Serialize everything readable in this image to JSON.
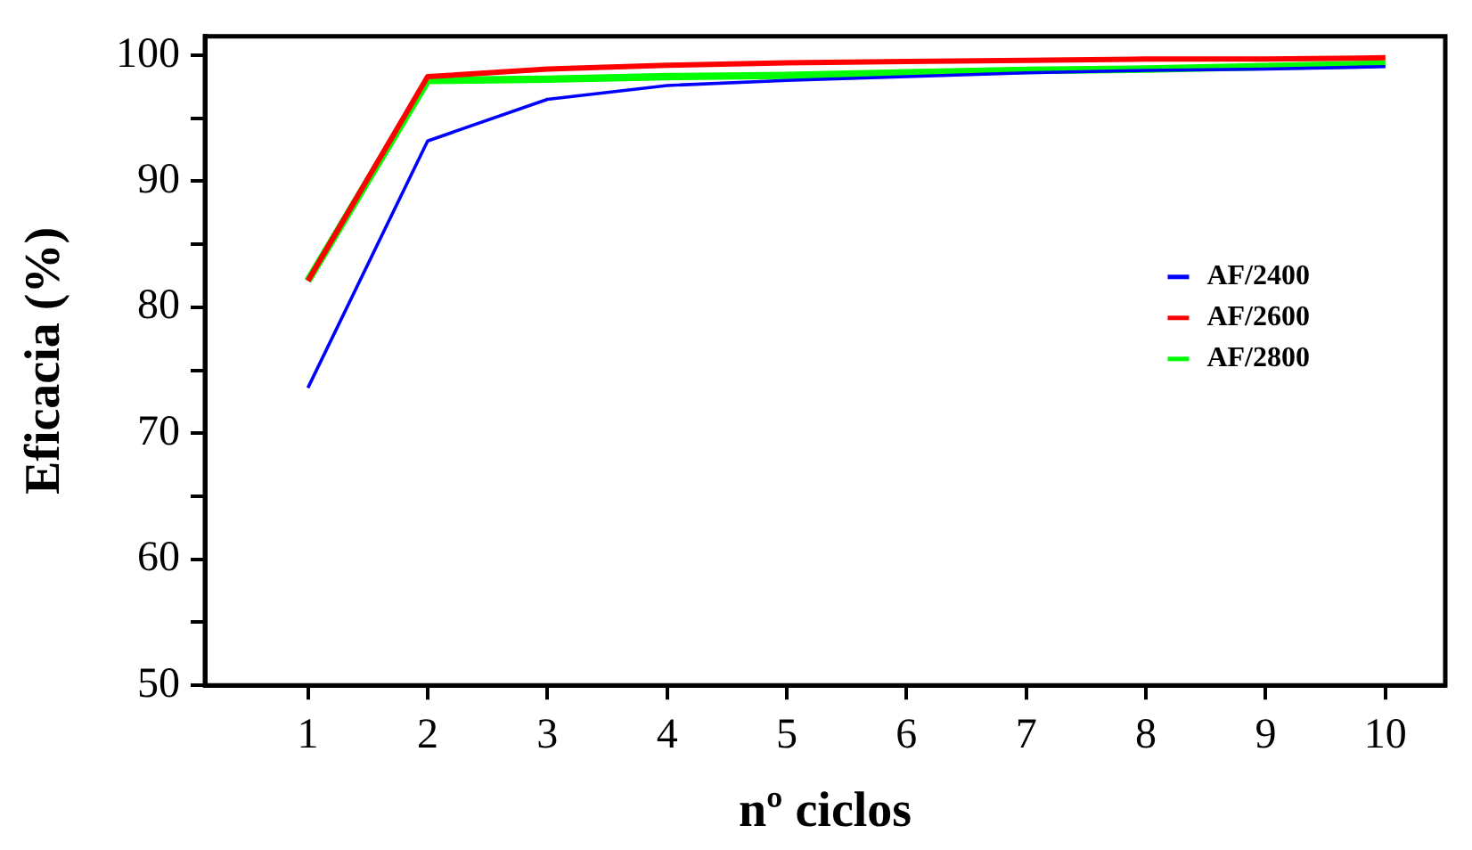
{
  "chart_data": {
    "type": "line",
    "xlabel": "nº ciclos",
    "ylabel": "Eficacia (%)",
    "x": [
      1,
      2,
      3,
      4,
      5,
      6,
      7,
      8,
      9,
      10
    ],
    "xlim": [
      0.14,
      10.5
    ],
    "xticks": [
      1,
      2,
      3,
      4,
      5,
      6,
      7,
      8,
      9,
      10
    ],
    "ylim": [
      50,
      101.5
    ],
    "yticks": [
      50,
      {
        "value": 55,
        "label": null
      },
      60,
      {
        "value": 65,
        "label": null
      },
      70,
      {
        "value": 75,
        "label": null
      },
      80,
      {
        "value": 85,
        "label": null
      },
      90,
      {
        "value": 95,
        "label": null
      },
      100
    ],
    "grid": false,
    "legend": "right",
    "marker": "none",
    "line_style": "solid",
    "series": [
      {
        "name": "AF/2400",
        "color": "#0000ff",
        "values": [
          73.6,
          93.2,
          96.5,
          97.6,
          98.0,
          98.3,
          98.6,
          98.8,
          98.9,
          99.1
        ]
      },
      {
        "name": "AF/2600",
        "color": "#ff0000",
        "values": [
          82.1,
          98.3,
          98.9,
          99.2,
          99.4,
          99.5,
          99.6,
          99.7,
          99.7,
          99.8
        ]
      },
      {
        "name": "AF/2800",
        "color": "#00ff00",
        "values": [
          82.1,
          98.0,
          98.1,
          98.3,
          98.4,
          98.6,
          98.8,
          98.9,
          99.1,
          99.3
        ]
      }
    ]
  }
}
